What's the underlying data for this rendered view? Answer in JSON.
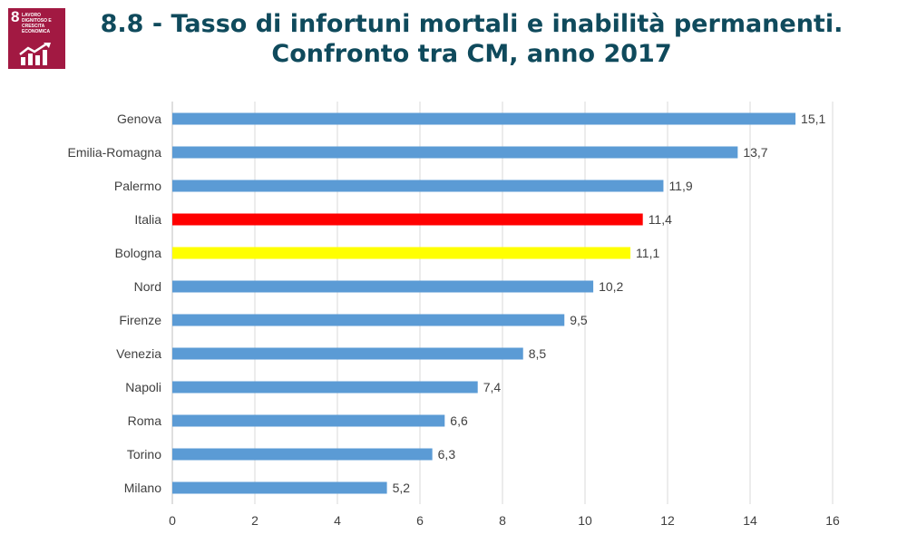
{
  "logo": {
    "number": "8",
    "title": "LAVORO DIGNITOSO E CRESCITA ECONOMICA",
    "color": "#a21942",
    "icon": "growth-chart-icon"
  },
  "chart_data": {
    "type": "bar",
    "orientation": "horizontal",
    "title": "8.8 - Tasso di infortuni mortali e inabilità permanenti.",
    "subtitle": "Confronto tra CM, anno 2017",
    "categories": [
      "Genova",
      "Emilia-Romagna",
      "Palermo",
      "Italia",
      "Bologna",
      "Nord",
      "Firenze",
      "Venezia",
      "Napoli",
      "Roma",
      "Torino",
      "Milano"
    ],
    "values": [
      15.1,
      13.7,
      11.9,
      11.4,
      11.1,
      10.2,
      9.5,
      8.5,
      7.4,
      6.6,
      6.3,
      5.2
    ],
    "value_labels": [
      "15,1",
      "13,7",
      "11,9",
      "11,4",
      "11,1",
      "10,2",
      "9,5",
      "8,5",
      "7,4",
      "6,6",
      "6,3",
      "5,2"
    ],
    "colors": [
      "#5b9bd5",
      "#5b9bd5",
      "#5b9bd5",
      "#ff0000",
      "#ffff00",
      "#5b9bd5",
      "#5b9bd5",
      "#5b9bd5",
      "#5b9bd5",
      "#5b9bd5",
      "#5b9bd5",
      "#5b9bd5"
    ],
    "xlim": [
      0,
      16
    ],
    "x_ticks": [
      0,
      2,
      4,
      6,
      8,
      10,
      12,
      14,
      16
    ],
    "xlabel": "",
    "ylabel": "",
    "grid": "vertical",
    "legend": "none"
  }
}
